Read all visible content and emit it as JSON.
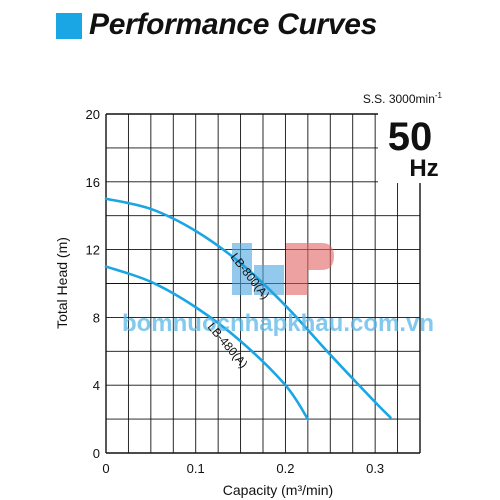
{
  "header": {
    "title": "Performance Curves",
    "marker_color": "#1aa5e4"
  },
  "speed_label": "S.S. 3000min",
  "speed_exp": "-1",
  "frequency": {
    "value": "50",
    "unit": "Hz"
  },
  "watermark": "bomnuocnhapkhau.com.vn",
  "colors": {
    "curve": "#1aa5e4",
    "grid": "#111111",
    "background": "#ffffff"
  },
  "chart_data": {
    "type": "line",
    "title": "Performance Curves",
    "xlabel": "Capacity (m³/min)",
    "ylabel": "Total Head (m)",
    "xlim": [
      0,
      0.35
    ],
    "ylim": [
      0,
      20
    ],
    "x_ticks": [
      "0",
      "0.1",
      "0.2",
      "0.3"
    ],
    "y_ticks": [
      "0",
      "4",
      "8",
      "12",
      "16",
      "20"
    ],
    "grid": true,
    "series": [
      {
        "name": "LB-800(A)",
        "points": [
          [
            0,
            15.0
          ],
          [
            0.05,
            14.4
          ],
          [
            0.1,
            13.1
          ],
          [
            0.15,
            11.2
          ],
          [
            0.2,
            8.7
          ],
          [
            0.25,
            5.8
          ],
          [
            0.3,
            3.0
          ],
          [
            0.317,
            2.1
          ]
        ]
      },
      {
        "name": "LB-480(A)",
        "points": [
          [
            0,
            11.0
          ],
          [
            0.05,
            10.1
          ],
          [
            0.1,
            8.6
          ],
          [
            0.15,
            6.6
          ],
          [
            0.2,
            4.0
          ],
          [
            0.225,
            2.0
          ]
        ]
      }
    ]
  }
}
